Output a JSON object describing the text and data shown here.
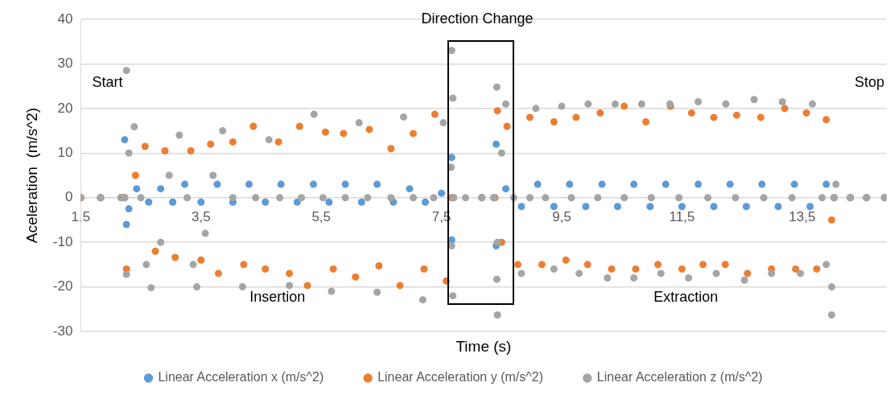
{
  "chart_data": {
    "type": "scatter",
    "xlabel": "Time (s)",
    "ylabel": "Aceleration  (m/s^2)",
    "xlim": [
      1.5,
      14.9
    ],
    "ylim": [
      -30,
      40
    ],
    "xticks": [
      {
        "value": 1.5,
        "label": "1,5"
      },
      {
        "value": 3.5,
        "label": "3,5"
      },
      {
        "value": 5.5,
        "label": "5,5"
      },
      {
        "value": 7.5,
        "label": "7,5"
      },
      {
        "value": 9.5,
        "label": "9,5"
      },
      {
        "value": 11.5,
        "label": "11,5"
      },
      {
        "value": 13.5,
        "label": "13,5"
      }
    ],
    "yticks": [
      -30,
      -20,
      -10,
      0,
      10,
      20,
      30,
      40
    ],
    "grid": "y",
    "legend": "bottom",
    "marker": "circle",
    "annotations": [
      "Start",
      "Stop",
      "Direction Change",
      "Insertion",
      "Extraction"
    ],
    "series": [
      {
        "name": "Linear Acceleration x (m/s^2)",
        "color": "#5b9bd5",
        "x": [
          1.5,
          1.83,
          2.17,
          2.23,
          2.23,
          2.26,
          2.3,
          2.43,
          2.63,
          2.83,
          3.03,
          3.23,
          3.5,
          3.77,
          4.03,
          4.3,
          4.57,
          4.83,
          5.1,
          5.37,
          5.63,
          5.9,
          6.17,
          6.43,
          6.7,
          6.97,
          7.23,
          7.5,
          7.67,
          7.67,
          7.7,
          8.17,
          8.37,
          8.41,
          8.41,
          8.57,
          8.83,
          9.1,
          9.37,
          9.63,
          9.9,
          10.17,
          10.43,
          10.7,
          10.97,
          11.23,
          11.5,
          11.77,
          12.03,
          12.3,
          12.57,
          12.83,
          13.1,
          13.37,
          13.63,
          13.9,
          14.03,
          14.3,
          14.57,
          14.87
        ],
        "values": [
          0,
          0,
          0,
          0,
          13,
          -6,
          -2.5,
          2,
          -1,
          2,
          -1,
          3,
          -1,
          3,
          -1,
          3,
          -1,
          3,
          -1,
          3,
          -1,
          3,
          -1,
          3,
          -1,
          2,
          -1,
          1,
          9,
          -9.5,
          0,
          0,
          0,
          12,
          -10.8,
          2,
          -2,
          3,
          -2,
          3,
          -2,
          3,
          -2,
          3,
          -2,
          3,
          -2,
          3,
          -2,
          3,
          -2,
          3,
          -2,
          3,
          -2,
          3,
          0,
          0,
          0,
          0
        ]
      },
      {
        "name": "Linear Acceleration y (m/s^2)",
        "color": "#ed7d31",
        "x": [
          1.5,
          1.83,
          2.17,
          2.23,
          2.26,
          2.41,
          2.57,
          2.74,
          2.9,
          3.07,
          3.33,
          3.5,
          3.66,
          3.79,
          4.03,
          4.21,
          4.37,
          4.57,
          4.79,
          4.97,
          5.14,
          5.27,
          5.57,
          5.7,
          5.87,
          6.07,
          6.3,
          6.46,
          6.66,
          6.81,
          7.03,
          7.21,
          7.39,
          7.58,
          7.67,
          8.17,
          8.39,
          8.43,
          8.5,
          8.59,
          8.77,
          8.97,
          9.17,
          9.37,
          9.57,
          9.74,
          9.93,
          10.14,
          10.33,
          10.54,
          10.73,
          10.9,
          11.1,
          11.31,
          11.5,
          11.66,
          11.85,
          12.03,
          12.22,
          12.41,
          12.59,
          12.81,
          12.99,
          13.21,
          13.39,
          13.57,
          13.74,
          13.9,
          13.99,
          14.03,
          14.3,
          14.57,
          14.87
        ],
        "values": [
          0,
          0,
          0,
          0,
          -16,
          5,
          11.5,
          -12,
          10.5,
          -13.4,
          10.5,
          -14,
          12,
          -17,
          12.5,
          -15,
          16,
          -16,
          12.5,
          -17,
          16,
          -19.7,
          14.7,
          -16,
          14.4,
          -17.8,
          15.3,
          -15.3,
          11,
          -19.7,
          14.4,
          -16,
          18.7,
          -18.7,
          0,
          0,
          0,
          19.5,
          -10,
          16,
          -15,
          18,
          -15,
          17,
          -14,
          18,
          -15,
          19,
          -16,
          20.5,
          -16,
          17,
          -15,
          20.5,
          -16,
          19,
          -15,
          18,
          -15,
          18.5,
          -17,
          18,
          -16,
          20,
          -16,
          19,
          -16,
          17.5,
          -5,
          0,
          0,
          0,
          0
        ]
      },
      {
        "name": "Linear Acceleration z (m/s^2)",
        "color": "#a5a5a5",
        "x": [
          1.5,
          1.83,
          2.17,
          2.23,
          2.26,
          2.26,
          2.3,
          2.39,
          2.5,
          2.59,
          2.67,
          2.83,
          2.97,
          3.14,
          3.27,
          3.37,
          3.43,
          3.57,
          3.7,
          3.86,
          4.03,
          4.19,
          4.41,
          4.63,
          4.81,
          4.97,
          5.17,
          5.38,
          5.53,
          5.67,
          5.9,
          6.13,
          6.27,
          6.43,
          6.66,
          6.87,
          7.03,
          7.19,
          7.37,
          7.53,
          7.67,
          7.69,
          7.66,
          7.67,
          7.69,
          7.7,
          7.9,
          8.17,
          8.37,
          8.42,
          8.42,
          8.43,
          8.43,
          8.5,
          8.57,
          8.7,
          8.83,
          8.97,
          9.07,
          9.23,
          9.37,
          9.5,
          9.66,
          9.79,
          9.94,
          10.1,
          10.26,
          10.39,
          10.54,
          10.7,
          10.83,
          10.99,
          11.15,
          11.3,
          11.45,
          11.61,
          11.77,
          11.93,
          12.07,
          12.23,
          12.39,
          12.54,
          12.7,
          12.86,
          12.99,
          13.17,
          13.33,
          13.47,
          13.67,
          13.83,
          13.9,
          13.99,
          13.99,
          14.03,
          14.06,
          14.3,
          14.57,
          14.87
        ],
        "values": [
          0,
          0,
          0,
          0,
          28.5,
          -17.2,
          10,
          15.9,
          0,
          -15,
          -20.2,
          -10,
          5,
          14,
          0,
          -15,
          -20,
          -8,
          5,
          15,
          0,
          -20,
          0,
          13,
          0,
          -19.7,
          0,
          18.7,
          0,
          -21,
          0,
          16.8,
          0,
          -21.2,
          0,
          18.1,
          0,
          -22.9,
          0,
          16.8,
          33,
          22.3,
          6.8,
          -10.8,
          -22,
          0,
          0,
          0,
          0,
          24.8,
          -18.3,
          -26.3,
          -10,
          10,
          21,
          0,
          -17,
          0,
          20,
          0,
          -16,
          20.5,
          0,
          -17,
          21,
          0,
          -18,
          21,
          0,
          -18,
          21,
          0,
          -17,
          21,
          0,
          -18,
          21.5,
          0,
          -17,
          21,
          0,
          -18.5,
          22,
          0,
          -17,
          21.5,
          0,
          -17,
          21,
          0,
          -15,
          -20,
          -26.3,
          0,
          3,
          0,
          0,
          0
        ]
      }
    ]
  }
}
